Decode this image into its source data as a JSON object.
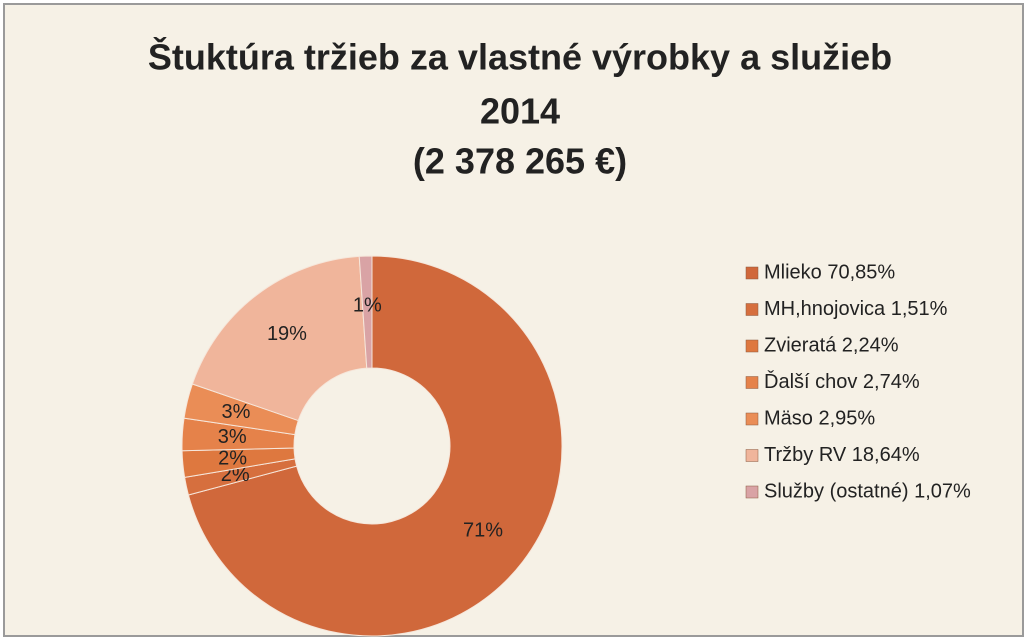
{
  "chart_data": {
    "type": "donut",
    "title": [
      "Štuktúra tržieb za vlastné výrobky a služieb",
      "2014",
      "(2 378 265 €)"
    ],
    "categories": [
      "Mlieko 70,85%",
      "MH,hnojovica 1,51%",
      "Zvieratá 2,24%",
      "Ďalší chov 2,74%",
      "Mäso 2,95%",
      "Tržby RV 18,64%",
      "Služby (ostatné) 1,07%"
    ],
    "values": [
      70.85,
      1.51,
      2.24,
      2.74,
      2.95,
      18.64,
      1.07
    ],
    "value_labels": [
      "71%",
      "2%",
      "2%",
      "3%",
      "3%",
      "19%",
      "1%"
    ],
    "colors": [
      "#d0683b",
      "#d66f3e",
      "#de783f",
      "#e5824a",
      "#ea8d56",
      "#f0b59b",
      "#d9a3a5"
    ],
    "legend": "right"
  }
}
